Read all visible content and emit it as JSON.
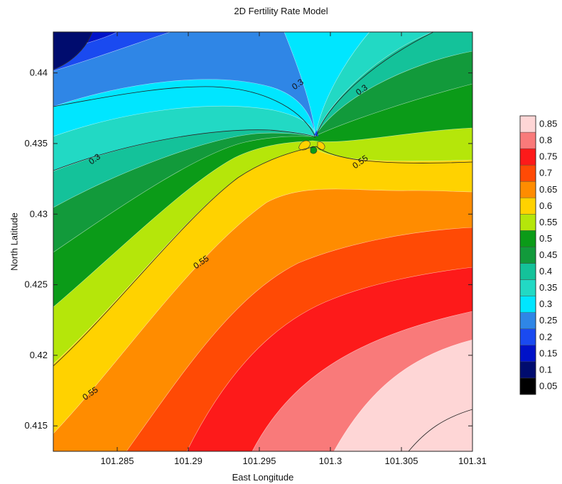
{
  "chart_data": {
    "type": "heatmap",
    "subtype": "filled-contour",
    "title": "2D Fertility Rate Model",
    "xlabel": "East Longitude",
    "ylabel": "North Latitude",
    "xlim": [
      101.2805,
      101.31
    ],
    "ylim": [
      0.4132,
      0.4429
    ],
    "x_ticks": [
      101.285,
      101.29,
      101.295,
      101.3,
      101.305,
      101.31
    ],
    "x_tick_labels": [
      "101.285",
      "101.29",
      "101.295",
      "101.3",
      "101.305",
      "101.31"
    ],
    "y_ticks": [
      0.415,
      0.42,
      0.425,
      0.43,
      0.435,
      0.44
    ],
    "y_tick_labels": [
      "0.415",
      "0.42",
      "0.425",
      "0.43",
      "0.435",
      "0.44"
    ],
    "levels": [
      0.05,
      0.1,
      0.15,
      0.2,
      0.25,
      0.3,
      0.35,
      0.4,
      0.45,
      0.5,
      0.55,
      0.6,
      0.65,
      0.7,
      0.75,
      0.8,
      0.85
    ],
    "level_labels": [
      "0.05",
      "0.1",
      "0.15",
      "0.2",
      "0.25",
      "0.3",
      "0.35",
      "0.4",
      "0.45",
      "0.5",
      "0.55",
      "0.6",
      "0.65",
      "0.7",
      "0.75",
      "0.8",
      "0.85"
    ],
    "level_colors": [
      "#000000",
      "#000c6e",
      "#0012c8",
      "#1a4af0",
      "#2f86e6",
      "#00e6ff",
      "#22d9c4",
      "#14c29a",
      "#129a3b",
      "#0b9b18",
      "#b5e60a",
      "#ffd200",
      "#ff8c00",
      "#ff4a05",
      "#fd1a1a",
      "#f97a7a",
      "#fed6d6"
    ],
    "contour_labels": [
      {
        "text": "0.3",
        "x": 101.2977,
        "y": 0.4392
      },
      {
        "text": "0.3",
        "x": 101.3022,
        "y": 0.4388
      },
      {
        "text": "0.3",
        "x": 101.2834,
        "y": 0.4339
      },
      {
        "text": "0.55",
        "x": 101.3021,
        "y": 0.4337
      },
      {
        "text": "0.55",
        "x": 101.2909,
        "y": 0.4266
      },
      {
        "text": "0.55",
        "x": 101.2831,
        "y": 0.4173
      }
    ],
    "grid": false,
    "legend": "right colorbar"
  }
}
